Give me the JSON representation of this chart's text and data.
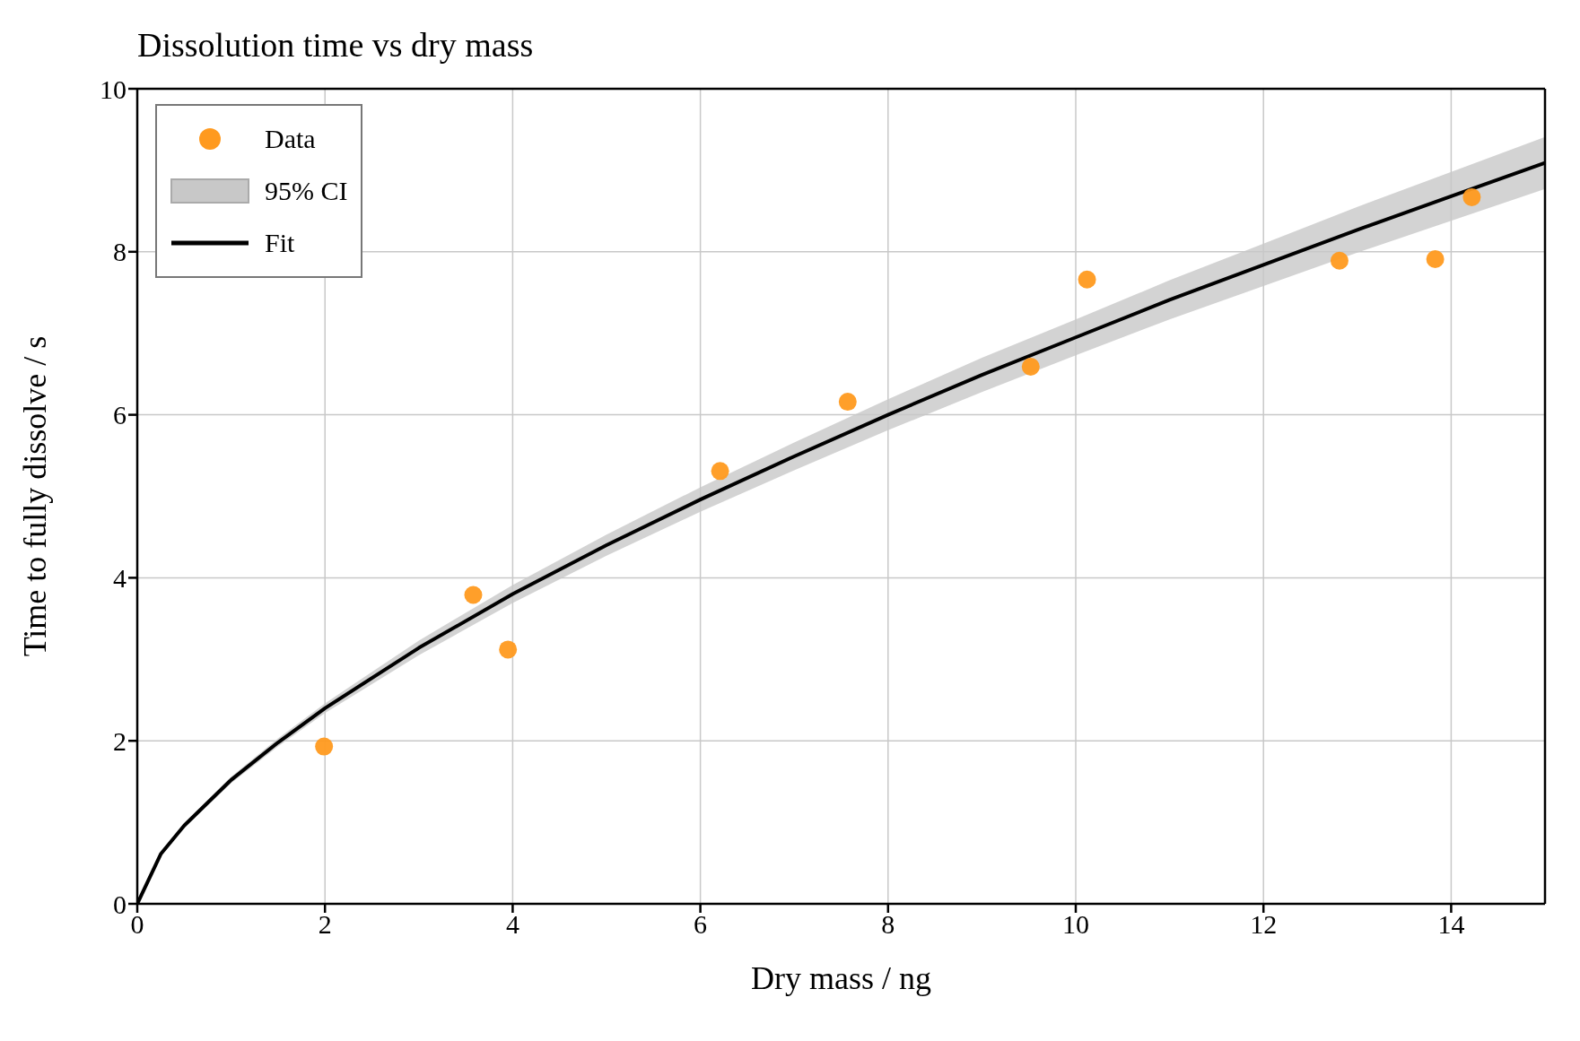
{
  "chart_data": {
    "type": "scatter",
    "title": "Dissolution time vs dry mass",
    "xlabel": "Dry mass / ng",
    "ylabel": "Time to fully dissolve / s",
    "annotations": [
      "95% CI"
    ],
    "xlim": [
      0,
      15
    ],
    "xticks": [
      0,
      2,
      4,
      6,
      8,
      10,
      12,
      14
    ],
    "ylim": [
      0,
      10
    ],
    "yticks": [
      0,
      2,
      4,
      6,
      8,
      10
    ],
    "grid": true,
    "legend": "top left",
    "series": [
      {
        "name": "Data",
        "color": "#ff9a1f",
        "marker": "circle",
        "x": [
          1.99,
          3.58,
          3.95,
          6.21,
          7.57,
          9.52,
          10.12,
          12.81,
          13.83,
          14.22
        ],
        "values": [
          1.93,
          3.79,
          3.12,
          5.31,
          6.16,
          6.59,
          7.66,
          7.89,
          7.91,
          8.67
        ]
      },
      {
        "name": "Fit",
        "type": "line",
        "color": "#000000",
        "line_style": "solid",
        "marker": "none",
        "x": [
          0,
          0.25,
          0.5,
          1,
          1.5,
          2,
          3,
          4,
          5,
          6,
          7,
          8,
          9,
          10,
          11,
          12,
          13,
          14,
          15
        ],
        "values": [
          0,
          0.61,
          0.96,
          1.52,
          1.98,
          2.4,
          3.14,
          3.8,
          4.4,
          4.96,
          5.49,
          6.0,
          6.49,
          6.95,
          7.41,
          7.84,
          8.27,
          8.68,
          9.09
        ],
        "lower": [
          0,
          0.59,
          0.93,
          1.48,
          1.93,
          2.34,
          3.05,
          3.69,
          4.27,
          4.81,
          5.32,
          5.81,
          6.28,
          6.73,
          7.17,
          7.58,
          7.99,
          8.38,
          8.77
        ],
        "upper": [
          0,
          0.62,
          0.99,
          1.56,
          2.03,
          2.46,
          3.23,
          3.91,
          4.53,
          5.11,
          5.66,
          6.19,
          6.7,
          7.17,
          7.65,
          8.1,
          8.55,
          8.98,
          9.41
        ]
      }
    ]
  }
}
